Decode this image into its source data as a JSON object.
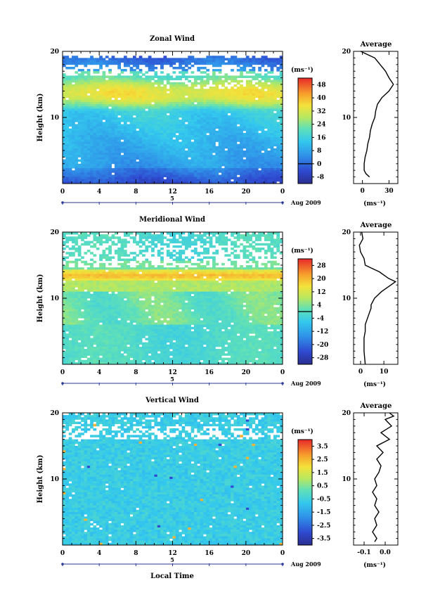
{
  "chart_data": [
    {
      "type": "heatmap",
      "title": "Zonal Wind",
      "ylabel": "Height (km)",
      "y_ticks": [
        "10",
        "20"
      ],
      "ylim": [
        0,
        20
      ],
      "x_ticks": [
        "0",
        "4",
        "8",
        "12",
        "16",
        "20",
        "0"
      ],
      "xlim": [
        0,
        24
      ],
      "day_label": "5",
      "date_label": "Aug 2009",
      "colorbar": {
        "unit": "(ms⁻¹)",
        "ticks": [
          "48",
          "40",
          "32",
          "24",
          "16",
          "8",
          "0",
          "-8"
        ],
        "range": [
          -12,
          52
        ]
      },
      "profile": {
        "title": "Average",
        "y_ticks": [
          "10",
          "20"
        ],
        "x_ticks": [
          "0",
          "30"
        ],
        "xlim": [
          -10,
          40
        ],
        "xlabel": "(ms⁻¹)",
        "points": [
          [
            8,
            1
          ],
          [
            4,
            1.5
          ],
          [
            2,
            2
          ],
          [
            2,
            3
          ],
          [
            3,
            4
          ],
          [
            5,
            5
          ],
          [
            6,
            6
          ],
          [
            8,
            7
          ],
          [
            9,
            8
          ],
          [
            11,
            9
          ],
          [
            14,
            10
          ],
          [
            15,
            11
          ],
          [
            17,
            12
          ],
          [
            22,
            13
          ],
          [
            30,
            14
          ],
          [
            35,
            15
          ],
          [
            30,
            16
          ],
          [
            26,
            17
          ],
          [
            20,
            18
          ],
          [
            14,
            19
          ],
          [
            6,
            19.5
          ],
          [
            -2,
            20
          ]
        ]
      }
    },
    {
      "type": "heatmap",
      "title": "Meridional Wind",
      "ylabel": "Height (km)",
      "y_ticks": [
        "10",
        "20"
      ],
      "ylim": [
        0,
        20
      ],
      "x_ticks": [
        "0",
        "4",
        "8",
        "12",
        "16",
        "20",
        "0"
      ],
      "xlim": [
        0,
        24
      ],
      "day_label": "5",
      "date_label": "Aug 2009",
      "colorbar": {
        "unit": "(ms⁻¹)",
        "ticks": [
          "28",
          "20",
          "12",
          "4",
          "-4",
          "-12",
          "-20",
          "-28"
        ],
        "range": [
          -32,
          32
        ]
      },
      "profile": {
        "title": "Average",
        "y_ticks": [
          "10",
          "20"
        ],
        "x_ticks": [
          "0",
          "10"
        ],
        "xlim": [
          -3,
          16
        ],
        "xlabel": "(ms⁻¹)",
        "points": [
          [
            2,
            0
          ],
          [
            1.5,
            2
          ],
          [
            1.5,
            4
          ],
          [
            2,
            5
          ],
          [
            2,
            6
          ],
          [
            3,
            7
          ],
          [
            4,
            8
          ],
          [
            4.5,
            8.5
          ],
          [
            4.5,
            9
          ],
          [
            6,
            10
          ],
          [
            9,
            11
          ],
          [
            13,
            12
          ],
          [
            15,
            12.5
          ],
          [
            12,
            13
          ],
          [
            8,
            14
          ],
          [
            5,
            14.5
          ],
          [
            2,
            15
          ],
          [
            1.5,
            16
          ],
          [
            0,
            17
          ],
          [
            -0.5,
            18
          ],
          [
            1,
            19
          ],
          [
            0.5,
            20
          ]
        ]
      }
    },
    {
      "type": "heatmap",
      "title": "Vertical Wind",
      "ylabel": "Height (km)",
      "y_ticks": [
        "10",
        "20"
      ],
      "ylim": [
        0,
        20
      ],
      "x_ticks": [
        "0",
        "4",
        "8",
        "12",
        "16",
        "20",
        "0"
      ],
      "xlim": [
        0,
        24
      ],
      "day_label": "5",
      "date_label": "Aug 2009",
      "xlabel": "Local Time",
      "colorbar": {
        "unit": "(ms⁻¹)",
        "ticks": [
          "3.5",
          "2.5",
          "1.5",
          "0.5",
          "-0.5",
          "-1.5",
          "-2.5",
          "-3.5"
        ],
        "range": [
          -4,
          4
        ]
      },
      "profile": {
        "title": "Average",
        "y_ticks": [
          "10",
          "20"
        ],
        "x_ticks": [
          "-0.1",
          "0.0"
        ],
        "xlim": [
          -0.15,
          0.06
        ],
        "xlabel": "(ms⁻¹)",
        "points": [
          [
            -0.05,
            0.5
          ],
          [
            -0.04,
            1
          ],
          [
            -0.06,
            2
          ],
          [
            -0.04,
            3
          ],
          [
            -0.05,
            4
          ],
          [
            -0.03,
            5
          ],
          [
            -0.05,
            6
          ],
          [
            -0.04,
            7
          ],
          [
            -0.06,
            8
          ],
          [
            -0.04,
            9
          ],
          [
            -0.05,
            10
          ],
          [
            -0.03,
            11
          ],
          [
            -0.02,
            12
          ],
          [
            -0.04,
            13
          ],
          [
            -0.01,
            14
          ],
          [
            -0.04,
            15
          ],
          [
            0.02,
            16
          ],
          [
            -0.02,
            17
          ],
          [
            0.03,
            18
          ],
          [
            0.0,
            19
          ],
          [
            0.04,
            19.5
          ],
          [
            0.02,
            20
          ]
        ]
      }
    }
  ]
}
